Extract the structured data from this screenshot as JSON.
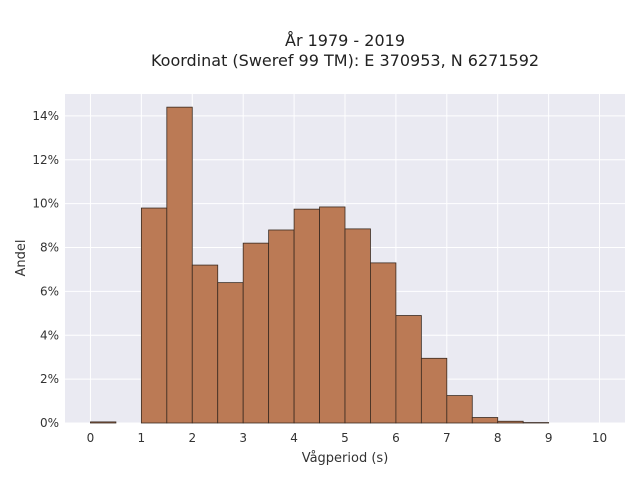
{
  "chart_data": {
    "type": "bar",
    "title_line1": "År 1979 - 2019",
    "title_line2": "Koordinat (Sweref 99 TM): E 370953, N 6271592",
    "xlabel": "Vågperiod (s)",
    "ylabel": "Andel",
    "xlim": [
      -0.5,
      10.5
    ],
    "ylim": [
      0,
      0.15
    ],
    "xticks": [
      0,
      1,
      2,
      3,
      4,
      5,
      6,
      7,
      8,
      9,
      10
    ],
    "xtick_labels": [
      "0",
      "1",
      "2",
      "3",
      "4",
      "5",
      "6",
      "7",
      "8",
      "9",
      "10"
    ],
    "yticks": [
      0,
      0.02,
      0.04,
      0.06,
      0.08,
      0.1,
      0.12,
      0.14
    ],
    "ytick_labels": [
      "0%",
      "2%",
      "4%",
      "6%",
      "8%",
      "10%",
      "12%",
      "14%"
    ],
    "grid": true,
    "bar_color": "#bb7a55",
    "edge_color": "#3a2a20",
    "background_color": "#eaeaf2",
    "bins": [
      {
        "x0": 0.0,
        "x1": 0.5,
        "value": 0.0005
      },
      {
        "x0": 0.5,
        "x1": 1.0,
        "value": 0.0
      },
      {
        "x0": 1.0,
        "x1": 1.5,
        "value": 0.098
      },
      {
        "x0": 1.5,
        "x1": 2.0,
        "value": 0.144
      },
      {
        "x0": 2.0,
        "x1": 2.5,
        "value": 0.072
      },
      {
        "x0": 2.5,
        "x1": 3.0,
        "value": 0.064
      },
      {
        "x0": 3.0,
        "x1": 3.5,
        "value": 0.082
      },
      {
        "x0": 3.5,
        "x1": 4.0,
        "value": 0.088
      },
      {
        "x0": 4.0,
        "x1": 4.5,
        "value": 0.0975
      },
      {
        "x0": 4.5,
        "x1": 5.0,
        "value": 0.0985
      },
      {
        "x0": 5.0,
        "x1": 5.5,
        "value": 0.0885
      },
      {
        "x0": 5.5,
        "x1": 6.0,
        "value": 0.073
      },
      {
        "x0": 6.0,
        "x1": 6.5,
        "value": 0.049
      },
      {
        "x0": 6.5,
        "x1": 7.0,
        "value": 0.0295
      },
      {
        "x0": 7.0,
        "x1": 7.5,
        "value": 0.0125
      },
      {
        "x0": 7.5,
        "x1": 8.0,
        "value": 0.0025
      },
      {
        "x0": 8.0,
        "x1": 8.5,
        "value": 0.0008
      },
      {
        "x0": 8.5,
        "x1": 9.0,
        "value": 0.0002
      }
    ]
  }
}
